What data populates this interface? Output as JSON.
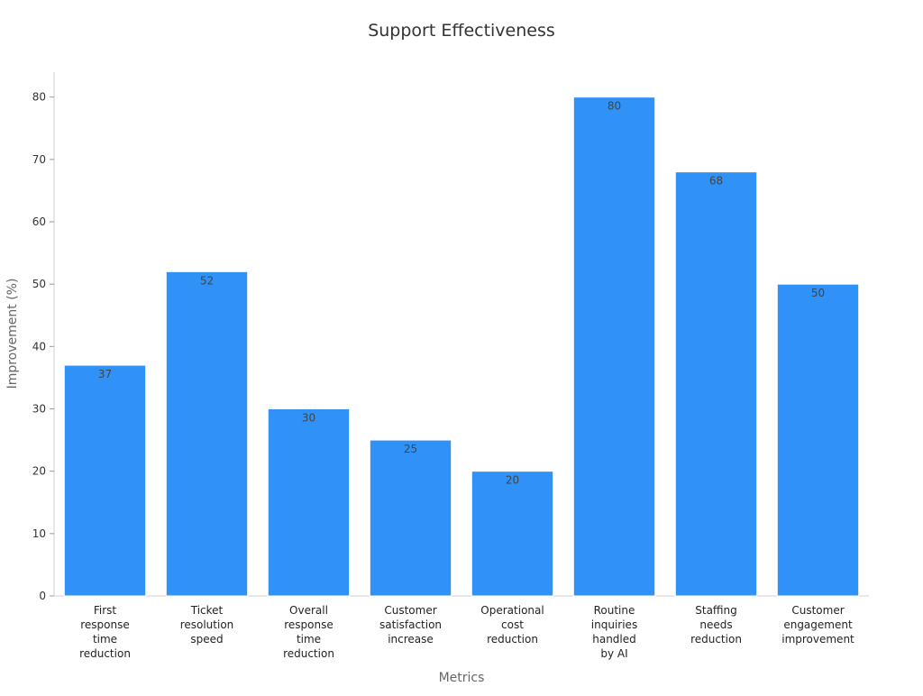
{
  "chart_data": {
    "type": "bar",
    "title": "Support Effectiveness",
    "xlabel": "Metrics",
    "ylabel": "Improvement (%)",
    "categories": [
      "First response time reduction",
      "Ticket resolution speed",
      "Overall response time reduction",
      "Customer satisfaction increase",
      "Operational cost reduction",
      "Routine inquiries handled by AI",
      "Staffing needs reduction",
      "Customer engagement improvement"
    ],
    "category_lines": [
      [
        "First",
        "response",
        "time",
        "reduction"
      ],
      [
        "Ticket",
        "resolution",
        "speed"
      ],
      [
        "Overall",
        "response",
        "time",
        "reduction"
      ],
      [
        "Customer",
        "satisfaction",
        "increase"
      ],
      [
        "Operational",
        "cost",
        "reduction"
      ],
      [
        "Routine",
        "inquiries",
        "handled",
        "by AI"
      ],
      [
        "Staffing",
        "needs",
        "reduction"
      ],
      [
        "Customer",
        "engagement",
        "improvement"
      ]
    ],
    "values": [
      37,
      52,
      30,
      25,
      20,
      80,
      68,
      50
    ],
    "ylim": [
      0,
      84
    ],
    "yticks": [
      0,
      10,
      20,
      30,
      40,
      50,
      60,
      70,
      80
    ],
    "bar_color": "#3092F6",
    "grid": false,
    "legend": "none"
  }
}
